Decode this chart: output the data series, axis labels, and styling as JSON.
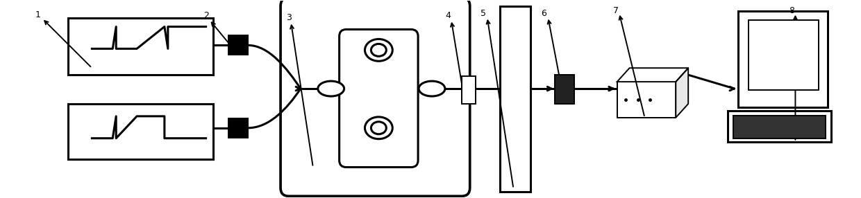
{
  "bg_color": "#ffffff",
  "line_color": "#000000",
  "figsize": [
    12.4,
    2.86
  ],
  "dpi": 100,
  "lw": 1.4,
  "lw_thick": 2.2
}
